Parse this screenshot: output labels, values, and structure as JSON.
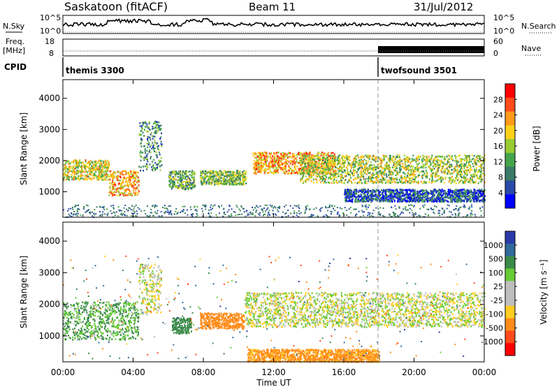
{
  "header": {
    "station": "Saskatoon (fitACF)",
    "beam": "Beam 11",
    "date": "31/Jul/2012"
  },
  "left_labels": {
    "nsky": "N.Sky",
    "freq_line1": "Freq.",
    "freq_line2": "[MHz]",
    "cpid": "CPID"
  },
  "right_labels": {
    "nsearch": "N.Search",
    "nave": "Nave"
  },
  "nsky_panel": {
    "left_ticks": [
      "10^5",
      "10^0"
    ],
    "right_ticks": [
      "10^5",
      "10^0"
    ]
  },
  "freq_panel": {
    "left_ticks": [
      "18",
      "8"
    ],
    "right_ticks": [
      "60",
      "0"
    ]
  },
  "cpid_panel": {
    "modes": [
      {
        "name": "themis 3300",
        "start_hour": 0
      },
      {
        "name": "twofsound 3501",
        "start_hour": 18
      }
    ]
  },
  "power_panel": {
    "colorbar_label": "Power [dB]",
    "colorbar_ticks": [
      "28",
      "24",
      "20",
      "16",
      "12",
      "8",
      "4"
    ],
    "colors": [
      "#0000ff",
      "#2a4aa8",
      "#3a7a66",
      "#44a44a",
      "#99cc33",
      "#ffd21a",
      "#ff9a1a",
      "#ff4a1a",
      "#ff0000"
    ]
  },
  "velocity_panel": {
    "colorbar_label": "Velocity [m s⁻¹]",
    "colorbar_ticks": [
      "1000",
      "500",
      "100",
      "25",
      "-25",
      "-100",
      "-500",
      "-1000"
    ],
    "colors": [
      "#2b3aa8",
      "#2f6a9a",
      "#3a8a4a",
      "#66cc33",
      "#bebebe",
      "#bebebe",
      "#ffcc22",
      "#ff8c1a",
      "#ff4a1a",
      "#ff0000"
    ]
  },
  "axes": {
    "ylabel": "Slant Range [km]",
    "xlabel": "Time UT",
    "yticks": [
      "4000",
      "3000",
      "2000",
      "1000"
    ],
    "xticks": [
      "00:00",
      "04:00",
      "08:00",
      "12:00",
      "16:00",
      "20:00",
      "00:00"
    ]
  },
  "chart_data": {
    "type": "heatmap",
    "title": "Saskatoon (fitACF)",
    "xlabel": "Time UT",
    "ylabel": "Slant Range [km]",
    "xlim": [
      0,
      24
    ],
    "ylim": [
      180,
      4600
    ],
    "mode_change_hour": 18,
    "power_echo_regions": [
      {
        "t_start": 0.0,
        "t_end": 2.6,
        "r_start": 1400,
        "r_end": 2050,
        "power_db": 18
      },
      {
        "t_start": 2.6,
        "t_end": 4.3,
        "r_start": 900,
        "r_end": 1700,
        "power_db": 22
      },
      {
        "t_start": 4.3,
        "t_end": 5.6,
        "r_start": 1700,
        "r_end": 3300,
        "power_db": 10
      },
      {
        "t_start": 6.0,
        "t_end": 7.5,
        "r_start": 1100,
        "r_end": 1700,
        "power_db": 12
      },
      {
        "t_start": 7.8,
        "t_end": 10.4,
        "r_start": 1250,
        "r_end": 1700,
        "power_db": 14
      },
      {
        "t_start": 10.8,
        "t_end": 15.5,
        "r_start": 1600,
        "r_end": 2300,
        "power_db": 22
      },
      {
        "t_start": 13.5,
        "t_end": 24.0,
        "r_start": 1300,
        "r_end": 2200,
        "power_db": 16
      },
      {
        "t_start": 16.0,
        "t_end": 24.0,
        "r_start": 700,
        "r_end": 1100,
        "power_db": 6
      }
    ],
    "velocity_echo_regions": [
      {
        "t_start": 0.0,
        "t_end": 4.3,
        "r_start": 900,
        "r_end": 2100,
        "velocity": 100
      },
      {
        "t_start": 4.3,
        "t_end": 5.6,
        "r_start": 1700,
        "r_end": 3300,
        "velocity": 0
      },
      {
        "t_start": 6.2,
        "t_end": 7.3,
        "r_start": 1100,
        "r_end": 1600,
        "velocity": 200
      },
      {
        "t_start": 7.8,
        "t_end": 10.3,
        "r_start": 1250,
        "r_end": 1750,
        "velocity": -300
      },
      {
        "t_start": 10.3,
        "t_end": 24.0,
        "r_start": 1300,
        "r_end": 2400,
        "velocity": 0
      },
      {
        "t_start": 10.5,
        "t_end": 18.0,
        "r_start": 200,
        "r_end": 600,
        "velocity": -150
      }
    ]
  }
}
